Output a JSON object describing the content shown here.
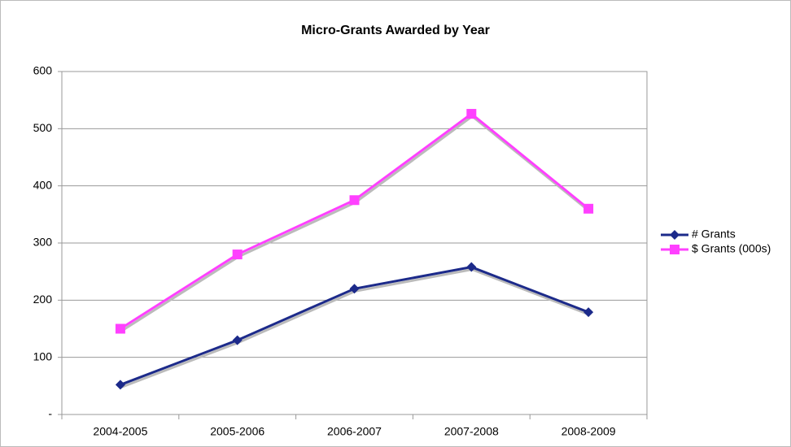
{
  "chart_data": {
    "type": "line",
    "title": "Micro-Grants Awarded by Year",
    "categories": [
      "2004-2005",
      "2005-2006",
      "2006-2007",
      "2007-2008",
      "2008-2009"
    ],
    "series": [
      {
        "name": "# Grants",
        "color": "#1c2a8a",
        "marker": "diamond",
        "values": [
          52,
          130,
          220,
          258,
          179
        ]
      },
      {
        "name": "$ Grants (000s)",
        "color": "#ff40ff",
        "marker": "square",
        "values": [
          150,
          280,
          375,
          526,
          360
        ]
      }
    ],
    "ylim": [
      0,
      600
    ],
    "yticks": [
      {
        "value": 0,
        "label": "-"
      },
      100,
      200,
      300,
      400,
      500,
      600
    ],
    "grid": true,
    "legend": "right"
  }
}
